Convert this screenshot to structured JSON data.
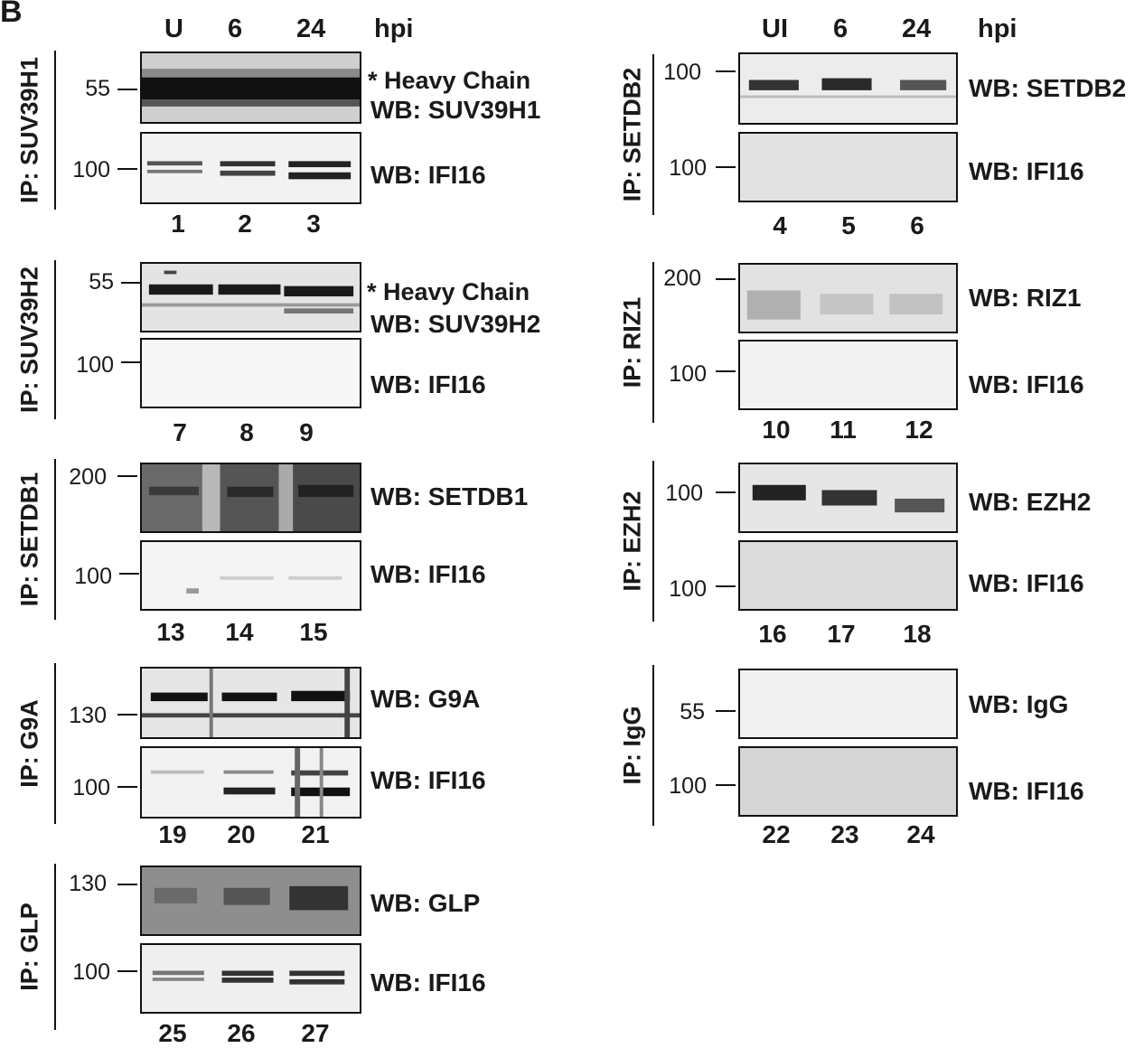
{
  "panel_letter": "B",
  "left_column": {
    "headers": [
      "U",
      "6",
      "24"
    ],
    "hpi": "hpi",
    "groups": [
      {
        "ip": "IP: SUV39H1",
        "top": {
          "mw": "55",
          "label": "WB: SUV39H1",
          "note": "* Heavy Chain"
        },
        "bottom": {
          "mw": "100",
          "label": "WB: IFI16"
        },
        "lanes": [
          "1",
          "2",
          "3"
        ]
      },
      {
        "ip": "IP: SUV39H2",
        "top": {
          "mw": "55",
          "label": "WB: SUV39H2",
          "note": "* Heavy Chain"
        },
        "bottom": {
          "mw": "100",
          "label": "WB: IFI16"
        },
        "lanes": [
          "7",
          "8",
          "9"
        ]
      },
      {
        "ip": "IP: SETDB1",
        "top": {
          "mw": "200",
          "label": "WB: SETDB1"
        },
        "bottom": {
          "mw": "100",
          "label": "WB: IFI16"
        },
        "lanes": [
          "13",
          "14",
          "15"
        ]
      },
      {
        "ip": "IP: G9A",
        "top": {
          "mw": "130",
          "label": "WB: G9A"
        },
        "bottom": {
          "mw": "100",
          "label": "WB: IFI16"
        },
        "lanes": [
          "19",
          "20",
          "21"
        ]
      },
      {
        "ip": "IP: GLP",
        "top": {
          "mw": "130",
          "label": "WB: GLP"
        },
        "bottom": {
          "mw": "100",
          "label": "WB: IFI16"
        },
        "lanes": [
          "25",
          "26",
          "27"
        ]
      }
    ]
  },
  "right_column": {
    "headers": [
      "UI",
      "6",
      "24"
    ],
    "hpi": "hpi",
    "groups": [
      {
        "ip": "IP: SETDB2",
        "top": {
          "mw": "100",
          "label": "WB: SETDB2"
        },
        "bottom": {
          "mw": "100",
          "label": "WB: IFI16"
        },
        "lanes": [
          "4",
          "5",
          "6"
        ]
      },
      {
        "ip": "IP: RIZ1",
        "top": {
          "mw": "200",
          "label": "WB: RIZ1"
        },
        "bottom": {
          "mw": "100",
          "label": "WB: IFI16"
        },
        "lanes": [
          "10",
          "11",
          "12"
        ]
      },
      {
        "ip": "IP: EZH2",
        "top": {
          "mw": "100",
          "label": "WB: EZH2"
        },
        "bottom": {
          "mw": "100",
          "label": "WB: IFI16"
        },
        "lanes": [
          "16",
          "17",
          "18"
        ]
      },
      {
        "ip": "IP: IgG",
        "top": {
          "mw": "55",
          "label": "WB: IgG"
        },
        "bottom": {
          "mw": "100",
          "label": "WB: IFI16"
        },
        "lanes": [
          "22",
          "23",
          "24"
        ]
      }
    ]
  }
}
